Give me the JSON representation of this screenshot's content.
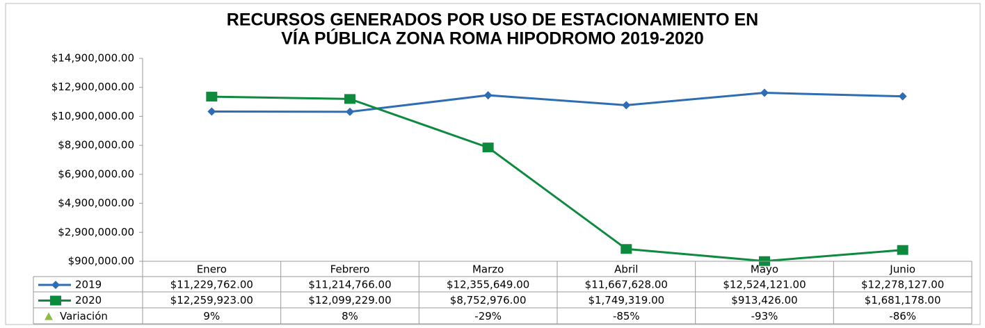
{
  "chart_data": {
    "type": "line",
    "title": [
      "RECURSOS GENERADOS POR USO DE ESTACIONAMIENTO EN",
      "VÍA PÚBLICA ZONA ROMA HIPODROMO 2019-2020"
    ],
    "categories": [
      "Enero",
      "Febrero",
      "Marzo",
      "Abril",
      "Mayo",
      "Junio"
    ],
    "series": [
      {
        "name": "2019",
        "color": "#2e6db4",
        "marker": "diamond",
        "values": [
          11229762,
          11214766,
          12355649,
          11667628,
          12524121,
          12278127
        ],
        "value_labels": [
          "$11,229,762.00",
          "$11,214,766.00",
          "$12,355,649.00",
          "$11,667,628.00",
          "$12,524,121.00",
          "$12,278,127.00"
        ]
      },
      {
        "name": "2020",
        "color": "#0e8a3e",
        "marker": "square",
        "values": [
          12259923,
          12099229,
          8752976,
          1749319,
          913426,
          1681178
        ],
        "value_labels": [
          "$12,259,923.00",
          "$12,099,229.00",
          "$8,752,976.00",
          "$1,749,319.00",
          "$913,426.00",
          "$1,681,178.00"
        ]
      },
      {
        "name": "Variación",
        "color": "#8fbc44",
        "marker": "triangle",
        "axis": "none",
        "values": [
          9,
          8,
          -29,
          -85,
          -93,
          -86
        ],
        "value_labels": [
          "9%",
          "8%",
          "-29%",
          "-85%",
          "-93%",
          "-86%"
        ]
      }
    ],
    "ylim": [
      900000,
      14900000
    ],
    "yticks": [
      {
        "value": 900000,
        "label": "$900,000.00"
      },
      {
        "value": 2900000,
        "label": "$2,900,000.00"
      },
      {
        "value": 4900000,
        "label": "$4,900,000.00"
      },
      {
        "value": 6900000,
        "label": "$6,900,000.00"
      },
      {
        "value": 8900000,
        "label": "$8,900,000.00"
      },
      {
        "value": 10900000,
        "label": "$10,900,000.00"
      },
      {
        "value": 12900000,
        "label": "$12,900,000.00"
      },
      {
        "value": 14900000,
        "label": "$14,900,000.00"
      }
    ],
    "grid": false
  }
}
